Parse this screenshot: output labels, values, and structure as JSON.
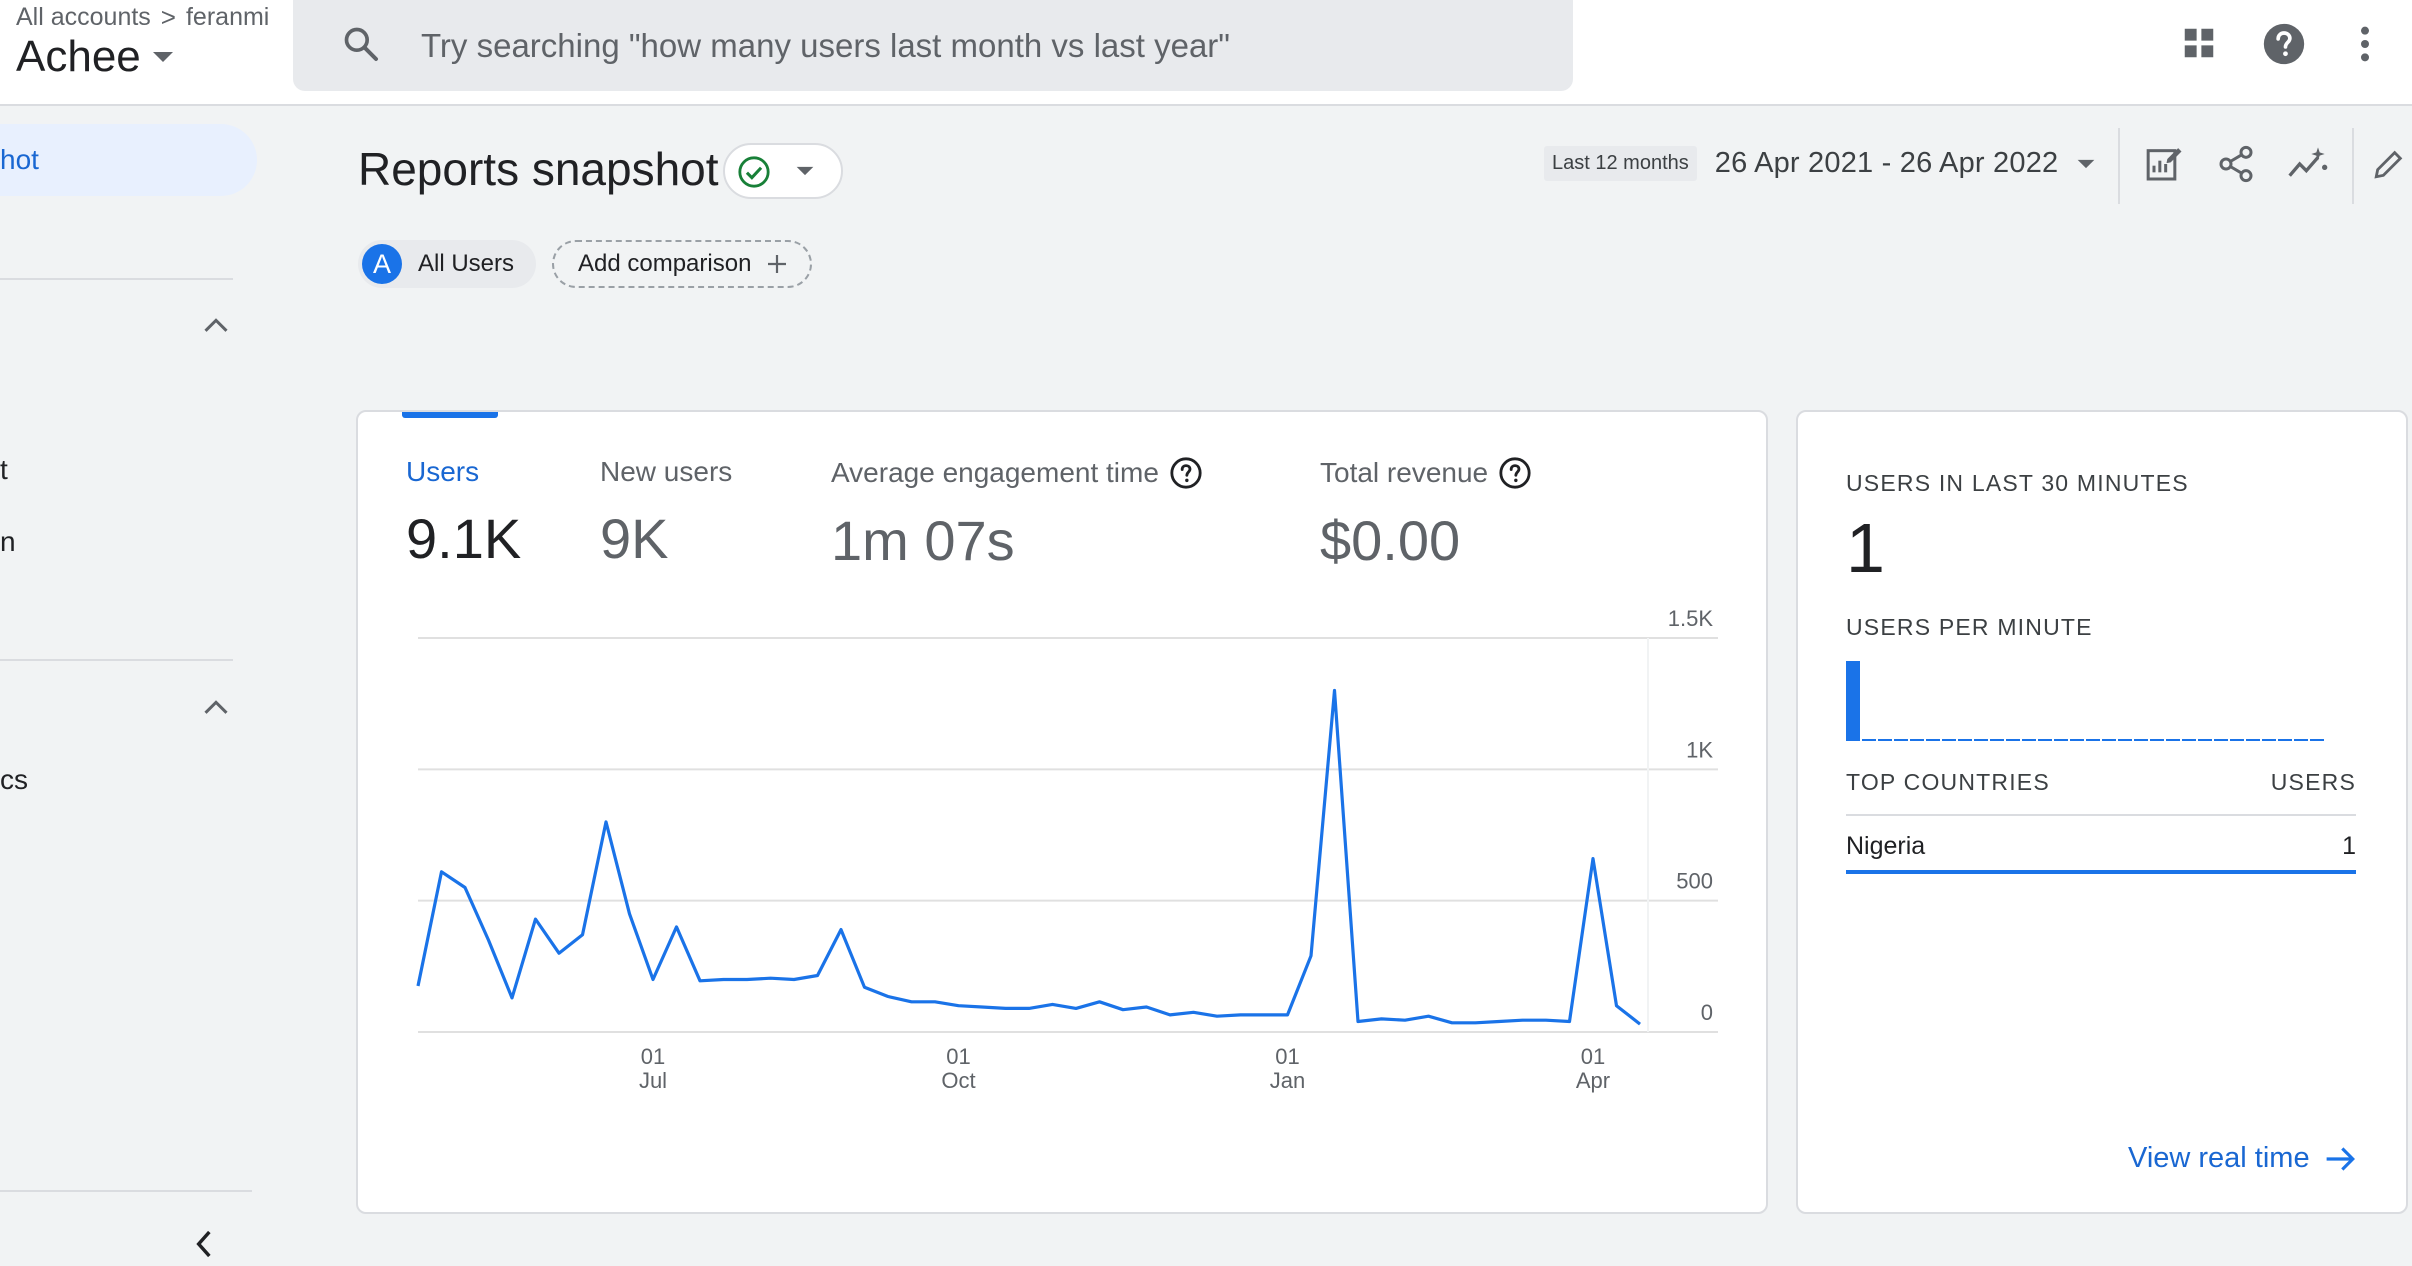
{
  "header": {
    "breadcrumb_root": "All accounts",
    "breadcrumb_sep": ">",
    "breadcrumb_account": "feranmi",
    "property_name": "Achee",
    "search_placeholder": "Try searching \"how many users last month vs last year\""
  },
  "nav": {
    "active_item": "hot",
    "items": [
      "t",
      "n",
      "cs"
    ]
  },
  "report": {
    "title": "Reports snapshot",
    "date_label": "Last 12 months",
    "date_range": "26 Apr 2021 - 26 Apr 2022",
    "comparison_badge": "A",
    "comparison_label": "All Users",
    "add_comparison": "Add comparison"
  },
  "metrics": [
    {
      "label": "Users",
      "value": "9.1K"
    },
    {
      "label": "New users",
      "value": "9K"
    },
    {
      "label": "Average engagement time",
      "value": "1m 07s"
    },
    {
      "label": "Total revenue",
      "value": "$0.00"
    }
  ],
  "chart_data": {
    "type": "line",
    "series": [
      {
        "values": [
          175,
          610,
          550,
          350,
          130,
          430,
          300,
          370,
          800,
          450,
          200,
          400,
          195,
          200,
          200,
          205,
          200,
          215,
          390,
          170,
          135,
          115,
          115,
          100,
          95,
          90,
          90,
          105,
          90,
          115,
          85,
          95,
          65,
          75,
          60,
          65,
          65,
          65,
          290,
          1300,
          40,
          50,
          45,
          60,
          35,
          35,
          40,
          45,
          45,
          40,
          660,
          100,
          30
        ]
      }
    ],
    "x_tick_labels": [
      {
        "day": "01",
        "month": "Jul",
        "index": 10
      },
      {
        "day": "01",
        "month": "Oct",
        "index": 23
      },
      {
        "day": "01",
        "month": "Jan",
        "index": 37
      },
      {
        "day": "01",
        "month": "Apr",
        "index": 50
      }
    ],
    "y_ticks": [
      0,
      500,
      1000,
      1500
    ],
    "y_tick_labels": [
      "0",
      "500",
      "1K",
      "1.5K"
    ],
    "ylim": [
      0,
      1500
    ],
    "grid": true,
    "color": "#1a73e8"
  },
  "realtime": {
    "users_30min_label": "USERS IN LAST 30 MINUTES",
    "users_30min_value": "1",
    "per_minute_label": "USERS PER MINUTE",
    "per_minute_values": [
      1,
      0,
      0,
      0,
      0,
      0,
      0,
      0,
      0,
      0,
      0,
      0,
      0,
      0,
      0,
      0,
      0,
      0,
      0,
      0,
      0,
      0,
      0,
      0,
      0,
      0,
      0,
      0,
      0,
      0
    ],
    "countries_header": "TOP COUNTRIES",
    "users_header": "USERS",
    "countries": [
      {
        "name": "Nigeria",
        "users": "1"
      }
    ],
    "view_link": "View real time"
  },
  "colors": {
    "accent": "#1a73e8",
    "success": "#188038",
    "background": "#f1f3f4"
  }
}
